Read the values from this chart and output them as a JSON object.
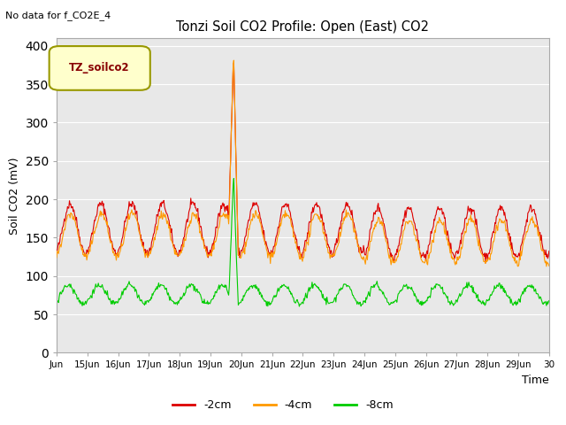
{
  "title": "Tonzi Soil CO2 Profile: Open (East) CO2",
  "no_data_text": "No data for f_CO2E_4",
  "legend_box_label": "TZ_soilco2",
  "xlabel": "Time",
  "ylabel": "Soil CO2 (mV)",
  "ylim": [
    0,
    410
  ],
  "yticks": [
    0,
    50,
    100,
    150,
    200,
    250,
    300,
    350,
    400
  ],
  "bg_color": "#e8e8e8",
  "line_colors": {
    "neg2cm": "#dd0000",
    "neg4cm": "#ff9900",
    "neg8cm": "#00cc00"
  },
  "legend_entries": [
    "-2cm",
    "-4cm",
    "-8cm"
  ],
  "spike_day": 5.75,
  "n_days": 16,
  "start_day": 14,
  "figsize": [
    6.4,
    4.8
  ],
  "dpi": 100
}
